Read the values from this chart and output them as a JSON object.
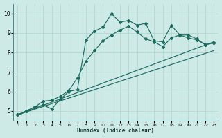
{
  "xlabel": "Humidex (Indice chaleur)",
  "xlim": [
    -0.5,
    23.5
  ],
  "ylim": [
    4.5,
    10.5
  ],
  "xticks": [
    0,
    1,
    2,
    3,
    4,
    5,
    6,
    7,
    8,
    9,
    10,
    11,
    12,
    13,
    14,
    15,
    16,
    17,
    18,
    19,
    20,
    21,
    22,
    23
  ],
  "yticks": [
    5,
    6,
    7,
    8,
    9,
    10
  ],
  "bg_color": "#cdeae6",
  "line_color": "#1e6b5e",
  "grid_color": "#aed4ce",
  "jagged_x": [
    0,
    1,
    2,
    3,
    4,
    5,
    6,
    7,
    8,
    9,
    10,
    11,
    12,
    13,
    14,
    15,
    16,
    17,
    18,
    19,
    20,
    21,
    22,
    23
  ],
  "jagged_y": [
    4.8,
    5.0,
    5.2,
    5.3,
    5.1,
    5.6,
    6.0,
    6.1,
    8.65,
    9.1,
    9.3,
    10.0,
    9.55,
    9.65,
    9.4,
    9.5,
    8.6,
    8.55,
    9.4,
    8.9,
    8.9,
    8.7,
    8.4,
    8.5
  ],
  "smooth1_x": [
    0,
    1,
    2,
    3,
    4,
    5,
    6,
    7,
    8,
    9,
    10,
    11,
    12,
    13,
    14,
    15,
    16,
    17,
    18,
    19,
    20,
    21,
    22,
    23
  ],
  "smooth1_y": [
    4.8,
    5.0,
    5.2,
    5.5,
    5.55,
    5.75,
    6.05,
    6.7,
    7.55,
    8.1,
    8.6,
    8.9,
    9.15,
    9.35,
    9.05,
    8.7,
    8.55,
    8.3,
    8.75,
    8.9,
    8.75,
    8.65,
    8.4,
    8.5
  ],
  "line2_x": [
    0,
    23
  ],
  "line2_y": [
    4.8,
    8.55
  ],
  "line3_x": [
    0,
    23
  ],
  "line3_y": [
    4.8,
    8.1
  ]
}
